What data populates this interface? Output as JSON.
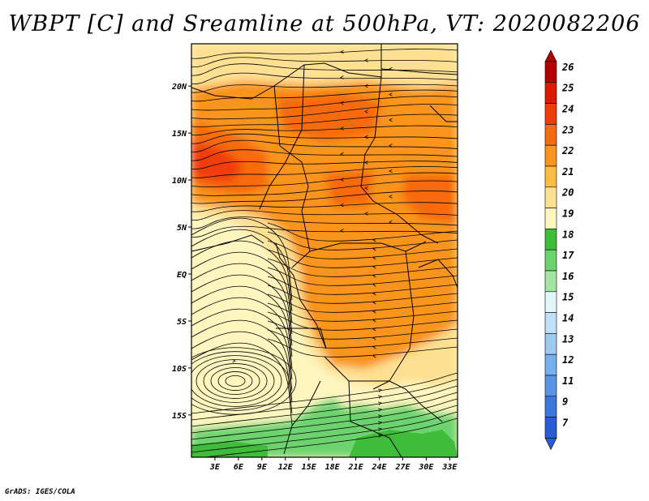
{
  "title": "WBPT [C] and Sreamline at 500hPa, VT: 2020082206",
  "footer": "GrADS: IGES/COLA",
  "lon_ticks": [
    "3E",
    "6E",
    "9E",
    "12E",
    "15E",
    "18E",
    "21E",
    "24E",
    "27E",
    "30E",
    "33E"
  ],
  "lat_ticks": [
    "20N",
    "15N",
    "10N",
    "5N",
    "EQ",
    "5S",
    "10S",
    "15S"
  ],
  "map": {
    "lon_range": [
      0,
      34
    ],
    "lat_range": [
      -19.5,
      24.5
    ],
    "lon_tick_values": [
      3,
      6,
      9,
      12,
      15,
      18,
      21,
      24,
      27,
      30,
      33
    ],
    "lat_tick_values": [
      20,
      15,
      10,
      5,
      0,
      -5,
      -10,
      -15
    ]
  },
  "colorbar": {
    "levels": [
      "26",
      "25",
      "24",
      "23",
      "22",
      "21",
      "20",
      "19",
      "18",
      "17",
      "16",
      "15",
      "14",
      "13",
      "12",
      "11",
      "9",
      "7"
    ],
    "colors": [
      "#b30000",
      "#dd1a00",
      "#f03c0a",
      "#f76a10",
      "#f9941c",
      "#fbbe43",
      "#fde092",
      "#fef5bf",
      "#3fbd3a",
      "#6dd36e",
      "#a3e5a3",
      "#e3f6f8",
      "#bfe0f8",
      "#9ec9f3",
      "#78b0ee",
      "#5a94e6",
      "#3e77dc",
      "#2a5dd4"
    ]
  },
  "palette": {
    "very_light": "#fef5bf",
    "light": "#fde092",
    "mid": "#fbbe43",
    "orange": "#f9941c",
    "dark_orange": "#f76a10",
    "red": "#f03c0a",
    "green": "#3fbd3a",
    "light_green": "#6dd36e"
  }
}
